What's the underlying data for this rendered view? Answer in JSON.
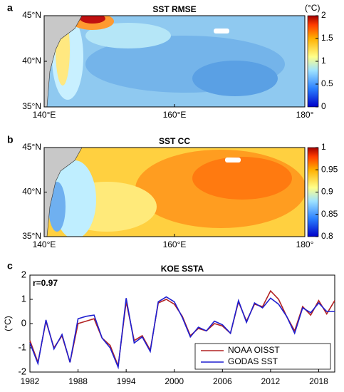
{
  "chart_data": [
    {
      "type": "map",
      "letter": "a",
      "title": "SST RMSE",
      "xlim": [
        140,
        180
      ],
      "xticks": [
        {
          "value": 140,
          "label": "140°E"
        },
        {
          "value": 160,
          "label": "160°E"
        },
        {
          "value": 180,
          "label": "180°"
        }
      ],
      "ylim": [
        35,
        45
      ],
      "yticks": [
        {
          "value": 35,
          "label": "35°N"
        },
        {
          "value": 40,
          "label": "40°N"
        },
        {
          "value": 45,
          "label": "45°N"
        }
      ],
      "colorbar": {
        "label": "(°C)",
        "lim": [
          0,
          2
        ],
        "ticks": [
          0,
          0.5,
          1,
          1.5,
          2
        ]
      }
    },
    {
      "type": "map",
      "letter": "b",
      "title": "SST CC",
      "xlim": [
        140,
        180
      ],
      "xticks": [
        {
          "value": 140,
          "label": "140°E"
        },
        {
          "value": 160,
          "label": "160°E"
        },
        {
          "value": 180,
          "label": "180°"
        }
      ],
      "ylim": [
        35,
        45
      ],
      "yticks": [
        {
          "value": 35,
          "label": "35°N"
        },
        {
          "value": 40,
          "label": "40°N"
        },
        {
          "value": 45,
          "label": "45°N"
        }
      ],
      "colorbar": {
        "lim": [
          0.8,
          1
        ],
        "ticks": [
          0.8,
          0.85,
          0.9,
          0.95,
          1
        ]
      }
    },
    {
      "type": "line",
      "letter": "c",
      "title": "KOE SSTA",
      "annotation": "r=0.97",
      "y_label": "(°C)",
      "x": [
        1982,
        1983,
        1984,
        1985,
        1986,
        1987,
        1988,
        1989,
        1990,
        1991,
        1992,
        1993,
        1994,
        1995,
        1996,
        1997,
        1998,
        1999,
        2000,
        2001,
        2002,
        2003,
        2004,
        2005,
        2006,
        2007,
        2008,
        2009,
        2010,
        2011,
        2012,
        2013,
        2014,
        2015,
        2016,
        2017,
        2018,
        2019,
        2020
      ],
      "xlim": [
        1982,
        2020
      ],
      "xticks": [
        1982,
        1988,
        1994,
        2000,
        2006,
        2012,
        2018
      ],
      "ylim": [
        -2,
        2
      ],
      "yticks": [
        -2,
        -1,
        0,
        1,
        2
      ],
      "legend": "lower right",
      "series": [
        {
          "name": "NOAA OISST",
          "color": "#b22222",
          "values": [
            -0.7,
            -1.6,
            0.1,
            -1.0,
            -0.5,
            -1.6,
            0.0,
            0.1,
            0.2,
            -0.6,
            -0.9,
            -1.75,
            0.9,
            -0.7,
            -0.5,
            -1.1,
            0.85,
            1.0,
            0.8,
            0.3,
            -0.5,
            -0.2,
            -0.3,
            0.0,
            -0.1,
            -0.4,
            0.9,
            0.1,
            0.8,
            0.7,
            1.35,
            1.0,
            0.3,
            -0.3,
            0.7,
            0.35,
            0.95,
            0.4,
            0.95
          ]
        },
        {
          "name": "GODAS SST",
          "color": "#1f1fd0",
          "values": [
            -0.8,
            -1.65,
            0.15,
            -1.05,
            -0.45,
            -1.6,
            0.2,
            0.3,
            0.35,
            -0.6,
            -1.0,
            -1.8,
            1.05,
            -0.8,
            -0.55,
            -1.15,
            0.9,
            1.1,
            0.9,
            0.25,
            -0.55,
            -0.15,
            -0.3,
            0.1,
            -0.05,
            -0.4,
            0.95,
            0.05,
            0.85,
            0.65,
            1.05,
            0.8,
            0.3,
            -0.4,
            0.65,
            0.45,
            0.85,
            0.5,
            0.5
          ]
        }
      ]
    }
  ]
}
